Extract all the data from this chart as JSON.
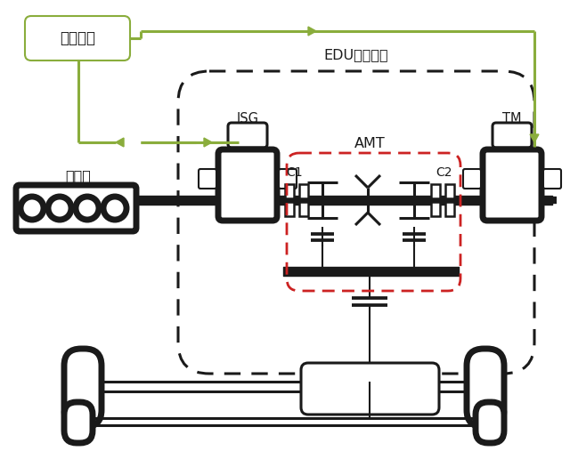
{
  "bg_color": "#ffffff",
  "green_color": "#8aad3c",
  "black_color": "#1a1a1a",
  "red_color": "#cc2222",
  "labels": {
    "battery": "动力电池",
    "engine": "发动机",
    "edu": "EDU变速系统",
    "isg": "ISG",
    "amt": "AMT",
    "tm": "TM",
    "c1": "C1",
    "c2": "C2"
  },
  "figsize": [
    6.4,
    5.07
  ],
  "dpi": 100
}
